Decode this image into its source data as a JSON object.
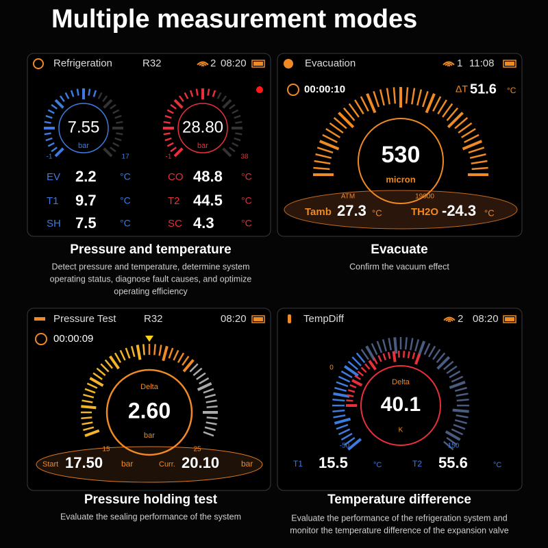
{
  "title": "Multiple measurement modes",
  "panels": [
    {
      "screen": {
        "mode": "Refrigeration",
        "refrigerant": "R32",
        "connections": "2",
        "time": "08:20",
        "gauges": [
          {
            "value": "7.55",
            "unit": "bar",
            "min": "-1",
            "max": "17"
          },
          {
            "value": "28.80",
            "unit": "bar",
            "min": "-1",
            "max": "38"
          }
        ],
        "readings": [
          {
            "label": "EV",
            "value": "2.2",
            "unit": "°C"
          },
          {
            "label": "T1",
            "value": "9.7",
            "unit": "°C"
          },
          {
            "label": "SH",
            "value": "7.5",
            "unit": "°C"
          },
          {
            "label": "CO",
            "value": "48.8",
            "unit": "°C"
          },
          {
            "label": "T2",
            "value": "44.5",
            "unit": "°C"
          },
          {
            "label": "SC",
            "value": "4.3",
            "unit": "°C"
          }
        ]
      },
      "caption": "Pressure and temperature",
      "description": [
        "Detect pressure and temperature, determine system",
        "operating status, diagnose fault causes, and optimize",
        "operating efficiency"
      ]
    },
    {
      "screen": {
        "mode": "Evacuation",
        "connections": "1",
        "time": "11:08",
        "timer": "00:00:10",
        "delta_t": {
          "label": "ΔT",
          "value": "51.6",
          "unit": "°C"
        },
        "gauge": {
          "value": "530",
          "unit": "micron",
          "min": "ATM",
          "max": "19000"
        },
        "readings": [
          {
            "label": "Tamb",
            "value": "27.3",
            "unit": "°C"
          },
          {
            "label": "TH2O",
            "value": "-24.3",
            "unit": "°C"
          }
        ]
      },
      "caption": "Evacuate",
      "description": [
        "Confirm the vacuum effect"
      ]
    },
    {
      "screen": {
        "mode": "Pressure Test",
        "refrigerant": "R32",
        "time": "08:20",
        "timer": "00:00:09",
        "gauge": {
          "label": "Delta",
          "value": "2.60",
          "unit": "bar",
          "min": "15",
          "max": "25"
        },
        "readings": [
          {
            "label": "Start",
            "value": "17.50",
            "unit": "bar"
          },
          {
            "label": "Curr.",
            "value": "20.10",
            "unit": "bar"
          }
        ]
      },
      "caption": "Pressure holding test",
      "description": [
        "Evaluate the sealing performance of the system"
      ]
    },
    {
      "screen": {
        "mode": "TempDiff",
        "connections": "2",
        "time": "08:20",
        "gauge": {
          "label": "Delta",
          "value": "40.1",
          "unit": "K",
          "min": "-50",
          "max": "150",
          "mark": "0"
        },
        "readings": [
          {
            "label": "T1",
            "value": "15.5",
            "unit": "°C"
          },
          {
            "label": "T2",
            "value": "55.6",
            "unit": "°C"
          }
        ]
      },
      "caption": "Temperature difference",
      "description": [
        "Evaluate the performance of the refrigeration system and",
        "monitor the temperature difference of the expansion valve"
      ]
    }
  ]
}
